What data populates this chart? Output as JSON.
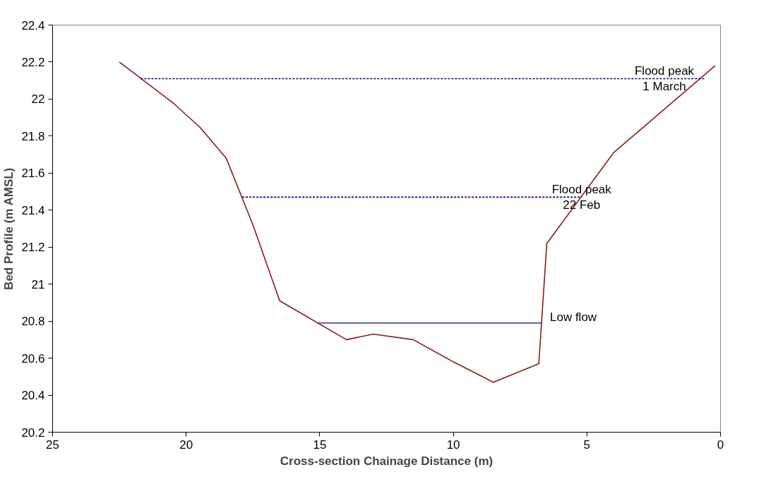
{
  "chart_data": {
    "type": "line",
    "xlabel": "Cross-section Chainage Distance (m)",
    "ylabel": "Bed Profile (m AMSL)",
    "xlim": [
      25,
      0
    ],
    "xticks": [
      25,
      20,
      15,
      10,
      5,
      0
    ],
    "ylim": [
      20.2,
      22.4
    ],
    "yticks": [
      20.2,
      20.4,
      20.6,
      20.8,
      21,
      21.2,
      21.4,
      21.6,
      21.8,
      22,
      22.2,
      22.4
    ],
    "grid": false,
    "marker": "none",
    "series": [
      {
        "color": "#8b1a1a",
        "line_style": "solid",
        "x": [
          22.5,
          20.5,
          19.5,
          18.5,
          17.5,
          16.5,
          14,
          13,
          11.5,
          10,
          8.5,
          6.8,
          6.5,
          4,
          0.2
        ],
        "values": [
          22.2,
          21.98,
          21.85,
          21.68,
          21.32,
          20.91,
          20.7,
          20.73,
          20.7,
          20.58,
          20.47,
          20.57,
          21.22,
          21.71,
          22.18
        ]
      },
      {
        "color": "#000080",
        "line_style": "dotted",
        "x": [
          21.7,
          0.6
        ],
        "values": [
          22.11,
          22.11
        ]
      },
      {
        "color": "#000080",
        "line_style": "dotted",
        "x": [
          17.9,
          5.2
        ],
        "values": [
          21.47,
          21.47
        ]
      },
      {
        "color": "#333399",
        "line_style": "solid",
        "x": [
          15.1,
          6.7
        ],
        "values": [
          20.79,
          20.79
        ]
      }
    ],
    "annotations": [
      {
        "text": "Flood peak\n1 March",
        "x": 2.1,
        "y": 22.11
      },
      {
        "text": "Flood peak\n22 Feb",
        "x": 5.2,
        "y": 21.47
      },
      {
        "text": "Low flow",
        "x": 6.7,
        "y": 20.79
      }
    ]
  }
}
